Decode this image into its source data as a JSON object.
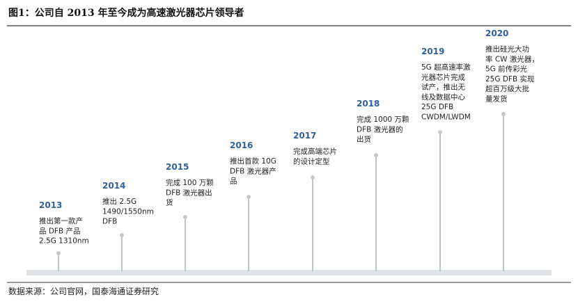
{
  "header": {
    "title": "图1：公司自 2013 年至今成为高速激光器芯片领导者"
  },
  "milestones": [
    {
      "year": "2013",
      "lines": [
        "推出第一款产",
        "品 DFB 产品",
        "2.5G 1310nm"
      ]
    },
    {
      "year": "2014",
      "lines": [
        "推出 2.5G",
        "1490/1550nm",
        "DFB"
      ]
    },
    {
      "year": "2015",
      "lines": [
        "完成 100 万颗",
        "DFB 激光器出",
        "货"
      ]
    },
    {
      "year": "2016",
      "lines": [
        "推出首款 10G",
        "DFB 激光器产",
        "品"
      ]
    },
    {
      "year": "2017",
      "lines": [
        "完成高端芯片",
        "的设计定型"
      ]
    },
    {
      "year": "2018",
      "lines": [
        "完成 1000 万颗",
        "DFB 激光器的",
        "出货"
      ]
    },
    {
      "year": "2019",
      "lines": [
        "5G 超高速率激",
        "光器芯片完成",
        "试产，推出无",
        "线及数据中心",
        "25G DFB",
        "CWDM/LWDM"
      ]
    },
    {
      "year": "2020",
      "lines": [
        "推出硅光大功",
        "率 CW 激光器，",
        "5G 前传彩光",
        "25G DFB 实现",
        "超百万级大批",
        "量发货"
      ]
    }
  ],
  "footer": {
    "source": "数据来源：公司官网，国泰海通证券研究"
  }
}
